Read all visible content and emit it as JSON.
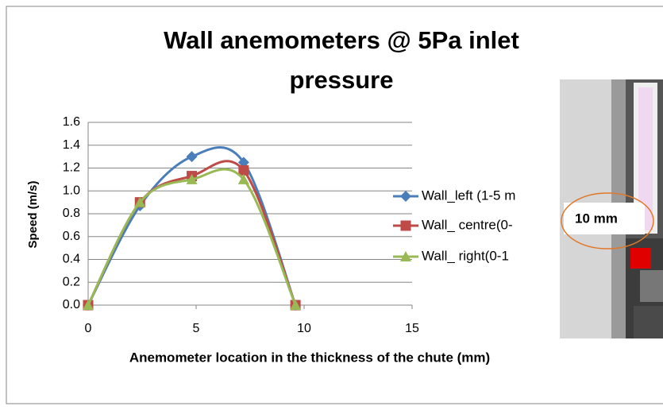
{
  "chart_data": {
    "type": "line",
    "title": "Wall anemometers @ 5Pa inlet pressure",
    "x_label": "Anemometer location in the thickness of the chute (mm)",
    "y_label": "Speed (m/s)",
    "x": [
      0,
      2.4,
      4.8,
      7.2,
      9.6
    ],
    "series": [
      {
        "name": "Wall_left (1-5 m",
        "color": "#4a7ebb",
        "marker": "diamond",
        "values": [
          0,
          0.87,
          1.3,
          1.25,
          0
        ]
      },
      {
        "name": "Wall_ centre(0-",
        "color": "#be4b48",
        "marker": "square",
        "values": [
          0,
          0.9,
          1.13,
          1.18,
          0
        ]
      },
      {
        "name": "Wall_ right(0-1",
        "color": "#98b954",
        "marker": "triangle",
        "values": [
          0,
          0.9,
          1.1,
          1.1,
          0
        ]
      }
    ],
    "xlim": [
      0,
      15
    ],
    "xticks": [
      0,
      5,
      10,
      15
    ],
    "ylim": [
      0,
      1.6
    ],
    "yticks": [
      {
        "value": 0,
        "label": "0.0"
      },
      0.2,
      0.4,
      0.6,
      0.8,
      {
        "value": 1,
        "label": "1.0"
      },
      1.2,
      1.4,
      1.6
    ],
    "grid": true,
    "legend": "right",
    "smooth": true,
    "image_annotation": "10 mm"
  }
}
